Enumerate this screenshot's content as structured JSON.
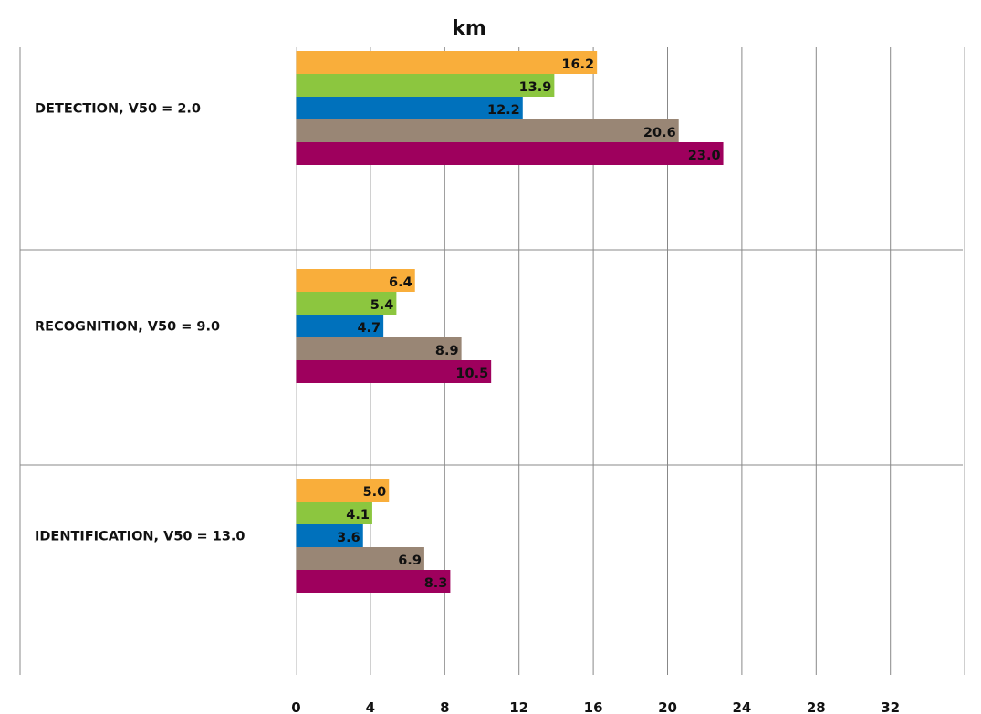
{
  "chart_data": {
    "type": "bar",
    "orientation": "horizontal",
    "title": "km",
    "categories": [
      "DETECTION, V50 = 2.0",
      "RECOGNITION, V50 = 9.0",
      "IDENTIFICATION, V50 = 13.0"
    ],
    "series": [
      {
        "color": "#F9AE3B",
        "values": [
          16.2,
          6.4,
          5.0
        ],
        "labels": [
          "16.2",
          "6.4",
          "5.0"
        ]
      },
      {
        "color": "#8CC63F",
        "values": [
          13.9,
          5.4,
          4.1
        ],
        "labels": [
          "13.9",
          "5.4",
          "4.1"
        ]
      },
      {
        "color": "#0071BC",
        "values": [
          12.2,
          4.7,
          3.6
        ],
        "labels": [
          "12.2",
          "4.7",
          "3.6"
        ]
      },
      {
        "color": "#998675",
        "values": [
          20.6,
          8.9,
          6.9
        ],
        "labels": [
          "20.6",
          "8.9",
          "6.9"
        ]
      },
      {
        "color": "#9E005D",
        "values": [
          23.0,
          10.5,
          8.3
        ],
        "labels": [
          "23.0",
          "10.5",
          "8.3"
        ]
      }
    ],
    "xlim": [
      0,
      36
    ],
    "xticks": [
      "0",
      "4",
      "8",
      "12",
      "16",
      "20",
      "24",
      "28",
      "32"
    ],
    "grid": true,
    "legend": "none"
  }
}
